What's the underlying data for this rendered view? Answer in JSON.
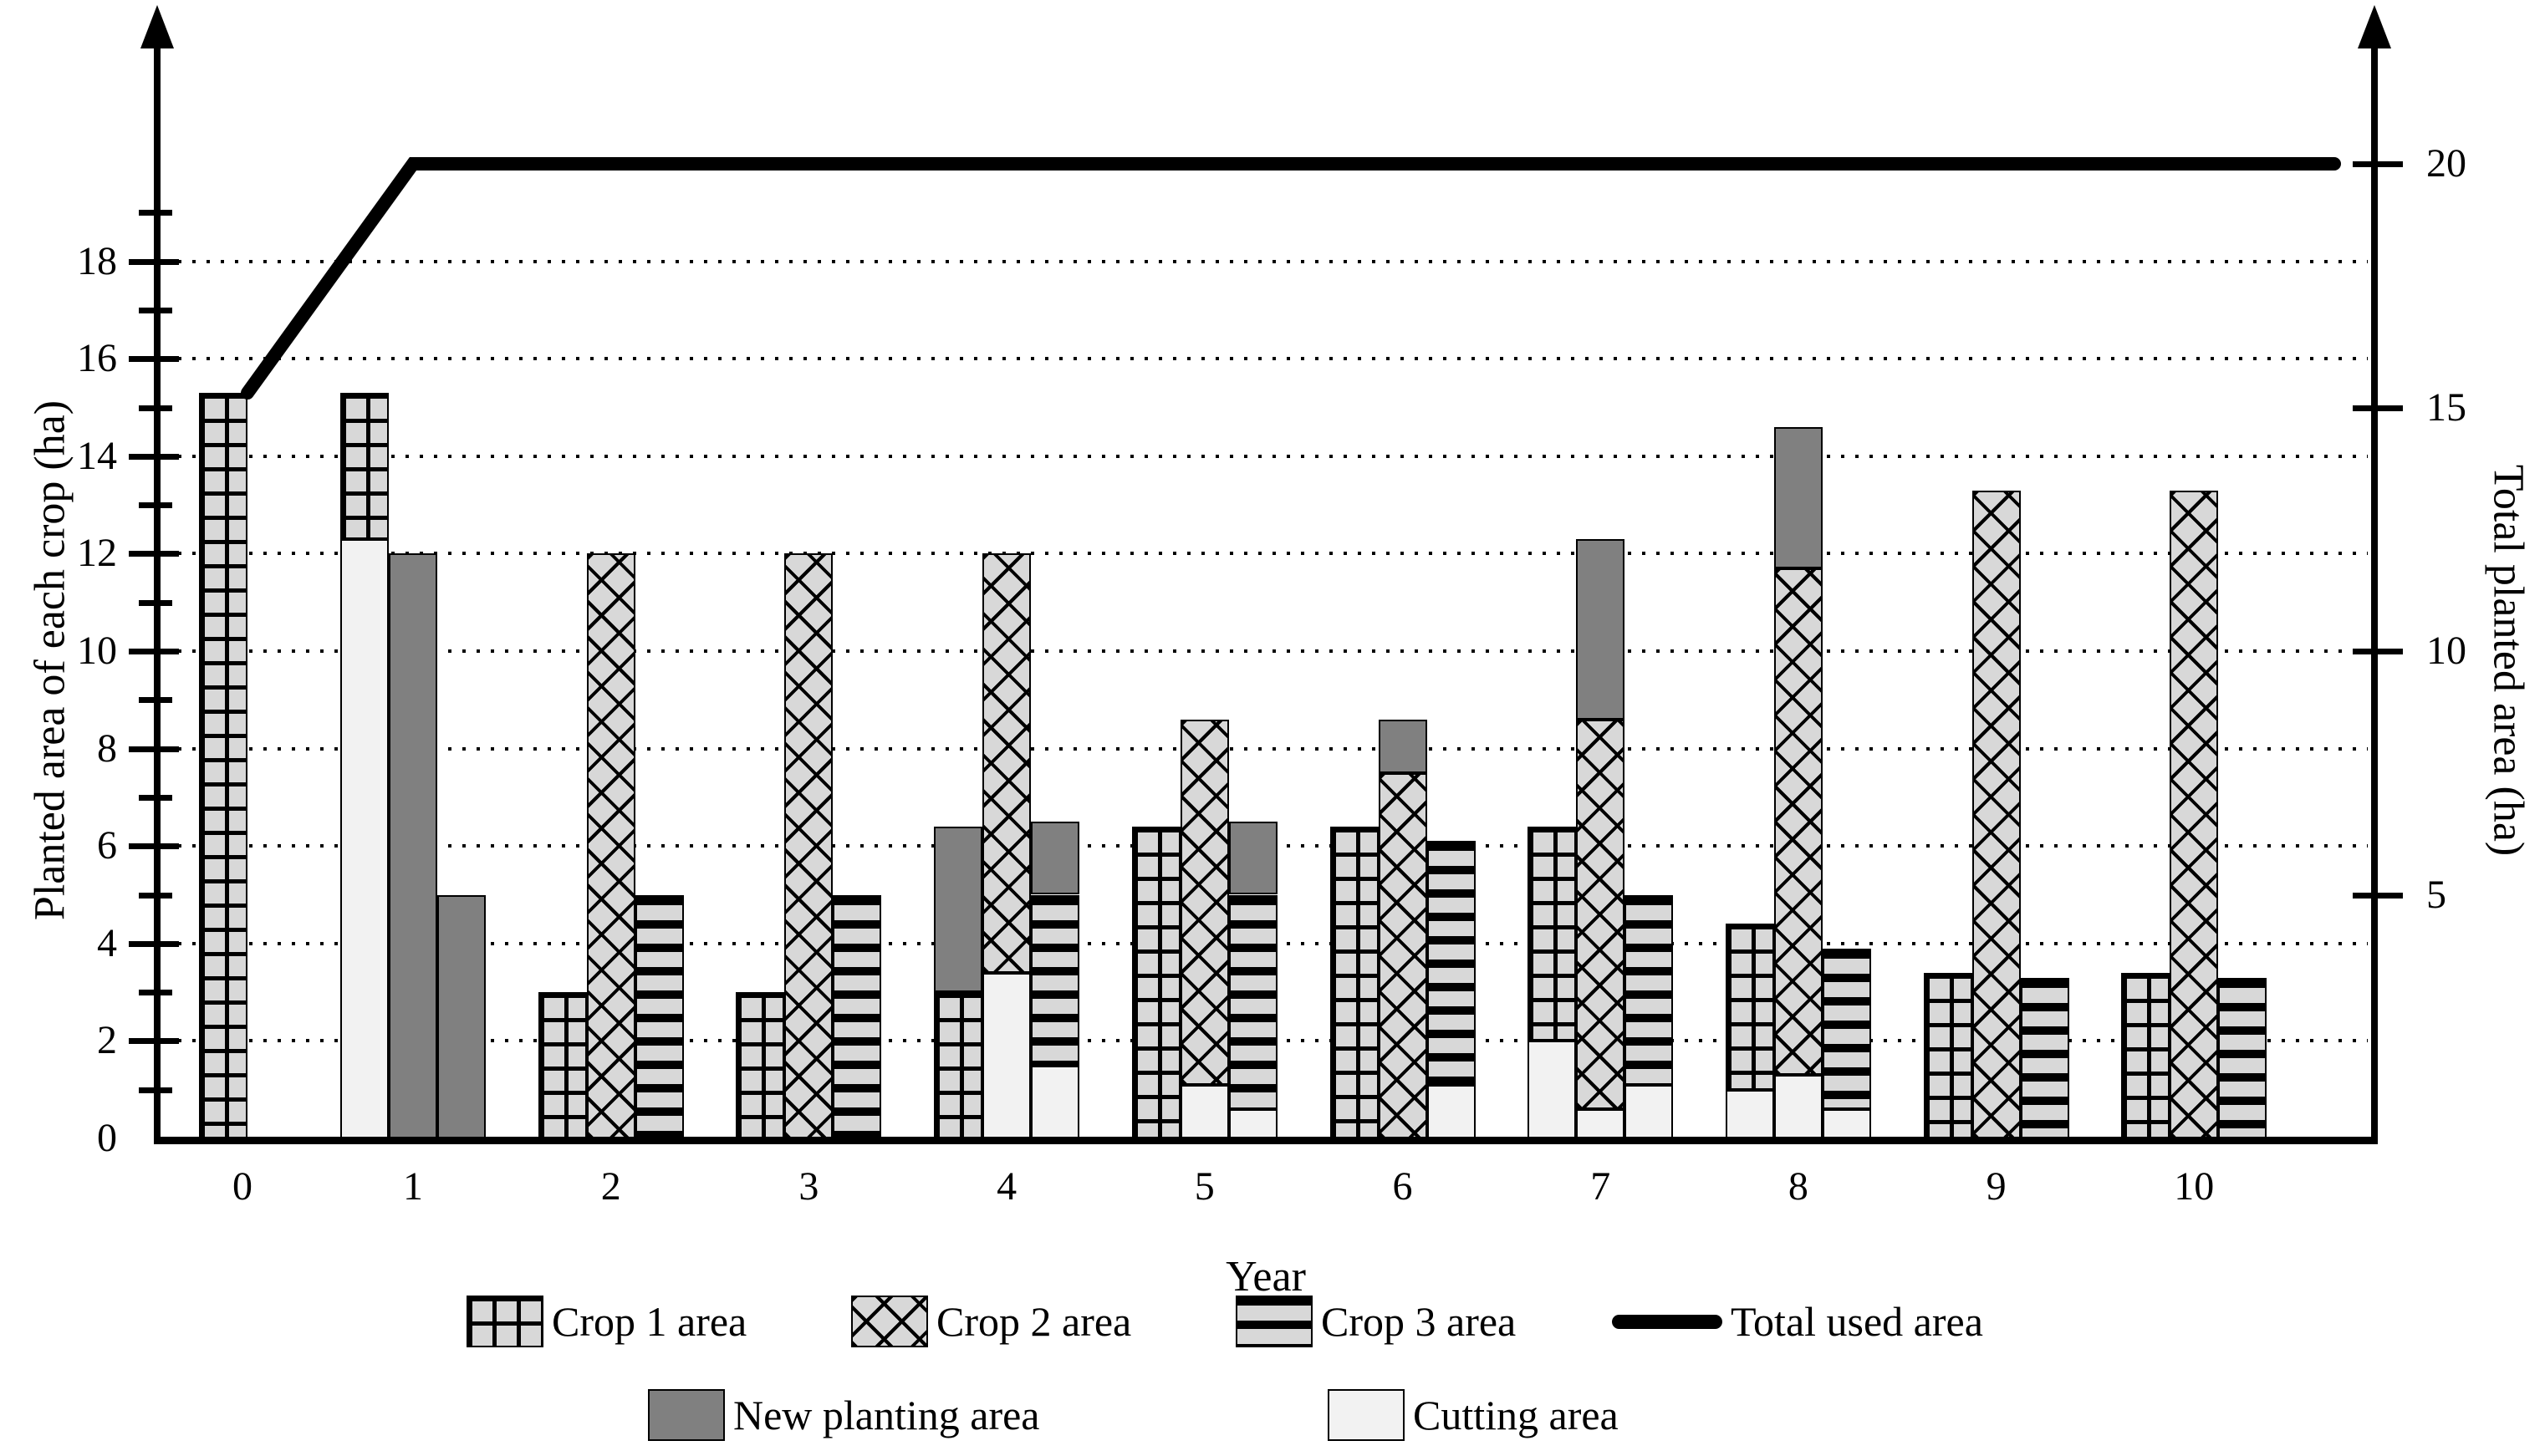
{
  "colors": {
    "bar_fill": "#d8d8d8",
    "pattern_line": "#000000",
    "new_planting": "#808080",
    "cutting": "#f2f2f2",
    "line": "#000000",
    "background": "#ffffff"
  },
  "legend": {
    "row1": [
      {
        "label": "Crop 1 area",
        "swatch": "crop1"
      },
      {
        "label": "Crop 2 area",
        "swatch": "crop2"
      },
      {
        "label": "Crop 3 area",
        "swatch": "crop3"
      },
      {
        "label": "Total used area",
        "swatch": "line"
      }
    ],
    "row2": [
      {
        "label": "New planting area",
        "swatch": "new"
      },
      {
        "label": "Cutting area",
        "swatch": "cut"
      }
    ]
  },
  "chart_data": {
    "type": "bar",
    "title": "",
    "xlabel": "Year",
    "ylabel_left": "Planted area of each crop (ha)",
    "ylabel_right": "Total planted area (ha)",
    "x": [
      0,
      1,
      2,
      3,
      4,
      5,
      6,
      7,
      8,
      9,
      10
    ],
    "ylim_left": [
      0,
      19.5
    ],
    "yticks_left": [
      0,
      2,
      4,
      6,
      8,
      10,
      12,
      14,
      16,
      18
    ],
    "yticks_right": [
      5,
      10,
      15,
      20
    ],
    "grid": "dotted horizontal at even left-axis values",
    "legend_position": "below",
    "segment_kinds": {
      "crop1": "Crop 1 area",
      "crop2": "Crop 2 area",
      "crop3": "Crop 3 area",
      "new": "New planting area",
      "cut": "Cutting area"
    },
    "years": [
      {
        "year": 0,
        "bars": [
          [
            {
              "k": "crop1",
              "v0": 0,
              "v1": 15.3
            }
          ]
        ]
      },
      {
        "year": 1,
        "bars": [
          [
            {
              "k": "cut",
              "v0": 0,
              "v1": 12.3
            },
            {
              "k": "crop1",
              "v0": 12.3,
              "v1": 15.3
            }
          ],
          [
            {
              "k": "new",
              "v0": 0,
              "v1": 12.0
            }
          ],
          [
            {
              "k": "new",
              "v0": 0,
              "v1": 5.0
            }
          ]
        ]
      },
      {
        "year": 2,
        "bars": [
          [
            {
              "k": "crop1",
              "v0": 0,
              "v1": 3.0
            }
          ],
          [
            {
              "k": "crop2",
              "v0": 0,
              "v1": 12.0
            }
          ],
          [
            {
              "k": "crop3",
              "v0": 0,
              "v1": 5.0
            }
          ]
        ]
      },
      {
        "year": 3,
        "bars": [
          [
            {
              "k": "crop1",
              "v0": 0,
              "v1": 3.0
            }
          ],
          [
            {
              "k": "crop2",
              "v0": 0,
              "v1": 12.0
            }
          ],
          [
            {
              "k": "crop3",
              "v0": 0,
              "v1": 5.0
            }
          ]
        ]
      },
      {
        "year": 4,
        "bars": [
          [
            {
              "k": "crop1",
              "v0": 0,
              "v1": 3.0
            },
            {
              "k": "new",
              "v0": 3.0,
              "v1": 6.4
            }
          ],
          [
            {
              "k": "cut",
              "v0": 0,
              "v1": 3.4
            },
            {
              "k": "crop2",
              "v0": 3.4,
              "v1": 12.0
            }
          ],
          [
            {
              "k": "cut",
              "v0": 0,
              "v1": 1.5
            },
            {
              "k": "crop3",
              "v0": 1.5,
              "v1": 5.0
            },
            {
              "k": "new",
              "v0": 5.0,
              "v1": 6.5
            }
          ]
        ]
      },
      {
        "year": 5,
        "bars": [
          [
            {
              "k": "crop1",
              "v0": 0,
              "v1": 6.4
            }
          ],
          [
            {
              "k": "cut",
              "v0": 0,
              "v1": 1.1
            },
            {
              "k": "crop2",
              "v0": 1.1,
              "v1": 8.6
            }
          ],
          [
            {
              "k": "cut",
              "v0": 0,
              "v1": 0.6
            },
            {
              "k": "crop3",
              "v0": 0.6,
              "v1": 5.0
            },
            {
              "k": "new",
              "v0": 5.0,
              "v1": 6.5
            }
          ]
        ]
      },
      {
        "year": 6,
        "bars": [
          [
            {
              "k": "crop1",
              "v0": 0,
              "v1": 6.4
            }
          ],
          [
            {
              "k": "crop2",
              "v0": 0,
              "v1": 7.5
            },
            {
              "k": "new",
              "v0": 7.5,
              "v1": 8.6
            }
          ],
          [
            {
              "k": "cut",
              "v0": 0,
              "v1": 1.1
            },
            {
              "k": "crop3",
              "v0": 1.1,
              "v1": 6.1
            }
          ]
        ]
      },
      {
        "year": 7,
        "bars": [
          [
            {
              "k": "cut",
              "v0": 0,
              "v1": 2.0
            },
            {
              "k": "crop1",
              "v0": 2.0,
              "v1": 6.4
            }
          ],
          [
            {
              "k": "cut",
              "v0": 0,
              "v1": 0.6
            },
            {
              "k": "crop2",
              "v0": 0.6,
              "v1": 8.6
            },
            {
              "k": "new",
              "v0": 8.6,
              "v1": 12.3
            }
          ],
          [
            {
              "k": "cut",
              "v0": 0,
              "v1": 1.1
            },
            {
              "k": "crop3",
              "v0": 1.1,
              "v1": 5.0
            }
          ]
        ]
      },
      {
        "year": 8,
        "bars": [
          [
            {
              "k": "cut",
              "v0": 0,
              "v1": 1.0
            },
            {
              "k": "crop1",
              "v0": 1.0,
              "v1": 4.4
            }
          ],
          [
            {
              "k": "cut",
              "v0": 0,
              "v1": 1.3
            },
            {
              "k": "crop2",
              "v0": 1.3,
              "v1": 11.7
            },
            {
              "k": "new",
              "v0": 11.7,
              "v1": 14.6
            }
          ],
          [
            {
              "k": "cut",
              "v0": 0,
              "v1": 0.6
            },
            {
              "k": "crop3",
              "v0": 0.6,
              "v1": 3.9
            }
          ]
        ]
      },
      {
        "year": 9,
        "bars": [
          [
            {
              "k": "crop1",
              "v0": 0,
              "v1": 3.4
            }
          ],
          [
            {
              "k": "crop2",
              "v0": 0,
              "v1": 13.3
            }
          ],
          [
            {
              "k": "crop3",
              "v0": 0,
              "v1": 3.3
            }
          ]
        ]
      },
      {
        "year": 10,
        "bars": [
          [
            {
              "k": "crop1",
              "v0": 0,
              "v1": 3.4
            }
          ],
          [
            {
              "k": "crop2",
              "v0": 0,
              "v1": 13.3
            }
          ],
          [
            {
              "k": "crop3",
              "v0": 0,
              "v1": 3.3
            }
          ]
        ]
      }
    ],
    "line": {
      "name": "Total used area",
      "points": [
        {
          "x": 0,
          "y": 15.3
        },
        {
          "x": 1,
          "y": 20
        },
        {
          "x": 10,
          "y": 20
        }
      ],
      "note": "plateau extends to right axis"
    }
  }
}
